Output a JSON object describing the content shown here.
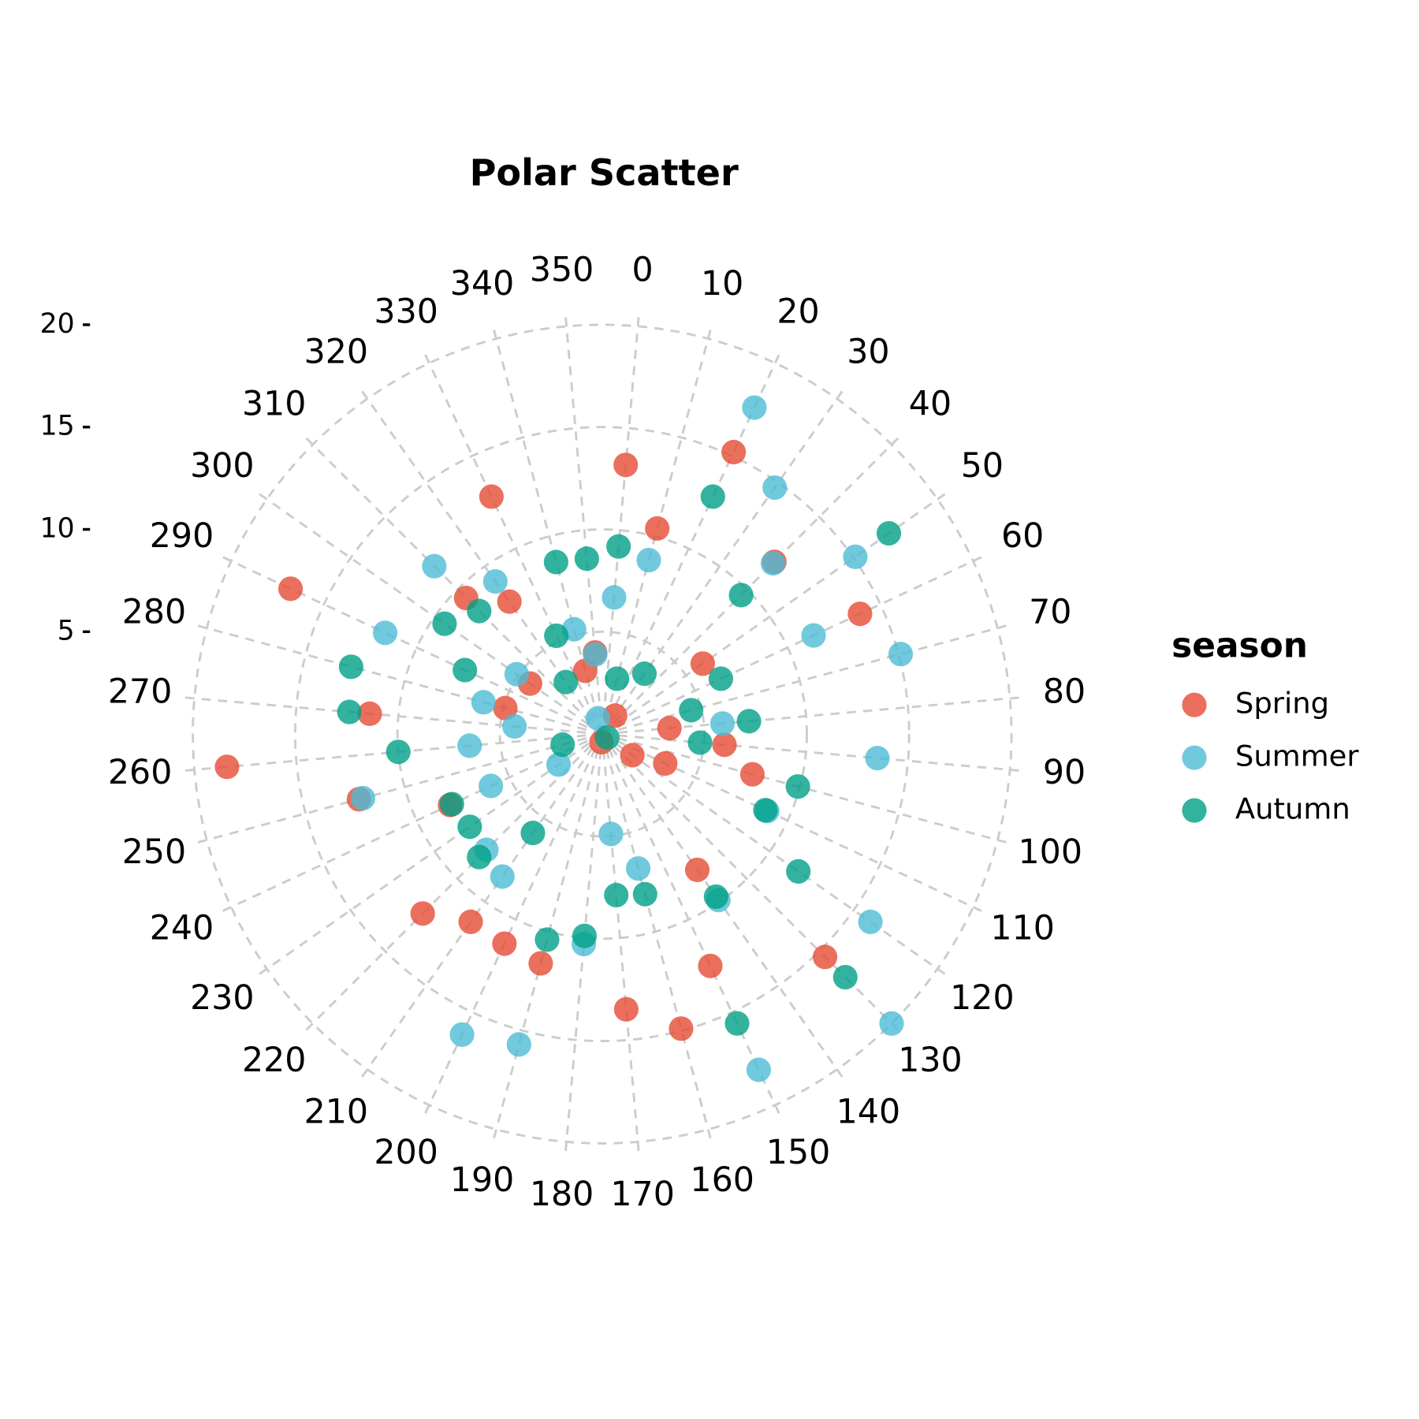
{
  "chart_data": {
    "type": "polar_scatter",
    "title": "Polar Scatter",
    "legend_title": "season",
    "thetalim": [
      -5,
      355
    ],
    "thetaticks": [
      0,
      10,
      20,
      30,
      40,
      50,
      60,
      70,
      80,
      90,
      100,
      110,
      120,
      130,
      140,
      150,
      160,
      170,
      180,
      190,
      200,
      210,
      220,
      230,
      240,
      250,
      260,
      270,
      280,
      290,
      300,
      310,
      320,
      330,
      340,
      350
    ],
    "ylim": [
      0,
      20
    ],
    "yticks": [
      5,
      10,
      15,
      20
    ],
    "grid": true,
    "legend_position": "right",
    "series": [
      {
        "name": "Spring",
        "color": "#E64B35",
        "theta": [
          0,
          20,
          10,
          40,
          60,
          50,
          80,
          90,
          100,
          110,
          120,
          30,
          180,
          140,
          150,
          130,
          160,
          170,
          190,
          200,
          210,
          220,
          240,
          250,
          260,
          270,
          280,
          300,
          290,
          310,
          320,
          330,
          350,
          340
        ],
        "values": [
          13.2,
          15.2,
          10.4,
          11.9,
          13.9,
          6.0,
          3.3,
          6.0,
          7.6,
          3.4,
          1.8,
          1.1,
          0.4,
          8.1,
          12.5,
          15.4,
          14.9,
          13.5,
          11.6,
          11.3,
          11.2,
          12.4,
          8.2,
          12.3,
          18.4,
          11.4,
          4.9,
          4.3,
          16.8,
          9.4,
          7.9,
          12.8,
          4.0,
          3.2
        ]
      },
      {
        "name": "Summer",
        "color": "#4DBBD5",
        "theta": [
          20,
          30,
          40,
          50,
          70,
          60,
          90,
          80,
          10,
          0,
          340,
          350,
          320,
          310,
          290,
          300,
          280,
          270,
          260,
          250,
          240,
          220,
          210,
          200,
          190,
          180,
          170,
          160,
          140,
          150,
          130,
          120,
          110,
          230,
          340
        ],
        "values": [
          17.6,
          14.7,
          11.8,
          15.1,
          15.1,
          11.4,
          13.5,
          5.9,
          8.8,
          6.7,
          5.3,
          3.9,
          9.1,
          11.6,
          11.7,
          5.1,
          6.0,
          4.3,
          6.5,
          12.1,
          6.0,
          8.0,
          8.5,
          16.2,
          15.7,
          10.3,
          4.9,
          6.8,
          9.9,
          18.1,
          20.0,
          16.0,
          8.9,
          2.6,
          0.8
        ]
      },
      {
        "name": "Autumn",
        "color": "#00A087",
        "theta": [
          50,
          20,
          0,
          350,
          340,
          40,
          30,
          60,
          70,
          80,
          90,
          100,
          110,
          120,
          130,
          140,
          150,
          160,
          170,
          180,
          190,
          210,
          220,
          230,
          240,
          260,
          270,
          280,
          300,
          310,
          290,
          330,
          320,
          10,
          250,
          120
        ],
        "values": [
          17.1,
          12.8,
          9.2,
          8.6,
          8.7,
          9.6,
          3.6,
          6.4,
          4.5,
          7.2,
          4.8,
          9.9,
          8.8,
          11.7,
          16.8,
          9.7,
          15.6,
          8.1,
          7.9,
          9.9,
          10.4,
          5.9,
          8.5,
          7.9,
          8.1,
          10.0,
          12.4,
          12.7,
          9.4,
          8.5,
          7.4,
          5.3,
          3.1,
          2.8,
          2.0,
          0.3
        ]
      }
    ]
  }
}
